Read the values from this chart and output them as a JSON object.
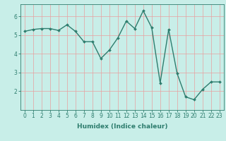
{
  "x": [
    0,
    1,
    2,
    3,
    4,
    5,
    6,
    7,
    8,
    9,
    10,
    11,
    12,
    13,
    14,
    15,
    16,
    17,
    18,
    19,
    20,
    21,
    22,
    23
  ],
  "y": [
    5.2,
    5.3,
    5.35,
    5.35,
    5.25,
    5.55,
    5.2,
    4.65,
    4.65,
    3.75,
    4.2,
    4.85,
    5.75,
    5.35,
    6.3,
    5.4,
    2.45,
    5.3,
    2.95,
    1.7,
    1.55,
    2.1,
    2.5,
    2.5
  ],
  "xlabel": "Humidex (Indice chaleur)",
  "xlim": [
    -0.5,
    23.5
  ],
  "ylim": [
    1.0,
    6.65
  ],
  "yticks": [
    2,
    3,
    4,
    5,
    6
  ],
  "xticks": [
    0,
    1,
    2,
    3,
    4,
    5,
    6,
    7,
    8,
    9,
    10,
    11,
    12,
    13,
    14,
    15,
    16,
    17,
    18,
    19,
    20,
    21,
    22,
    23
  ],
  "line_color": "#2e7d6e",
  "bg_color": "#c8eee8",
  "grid_color": "#e8a0a0",
  "marker": "D",
  "marker_size": 2,
  "line_width": 1.0,
  "label_fontsize": 6.5,
  "tick_fontsize": 5.5
}
